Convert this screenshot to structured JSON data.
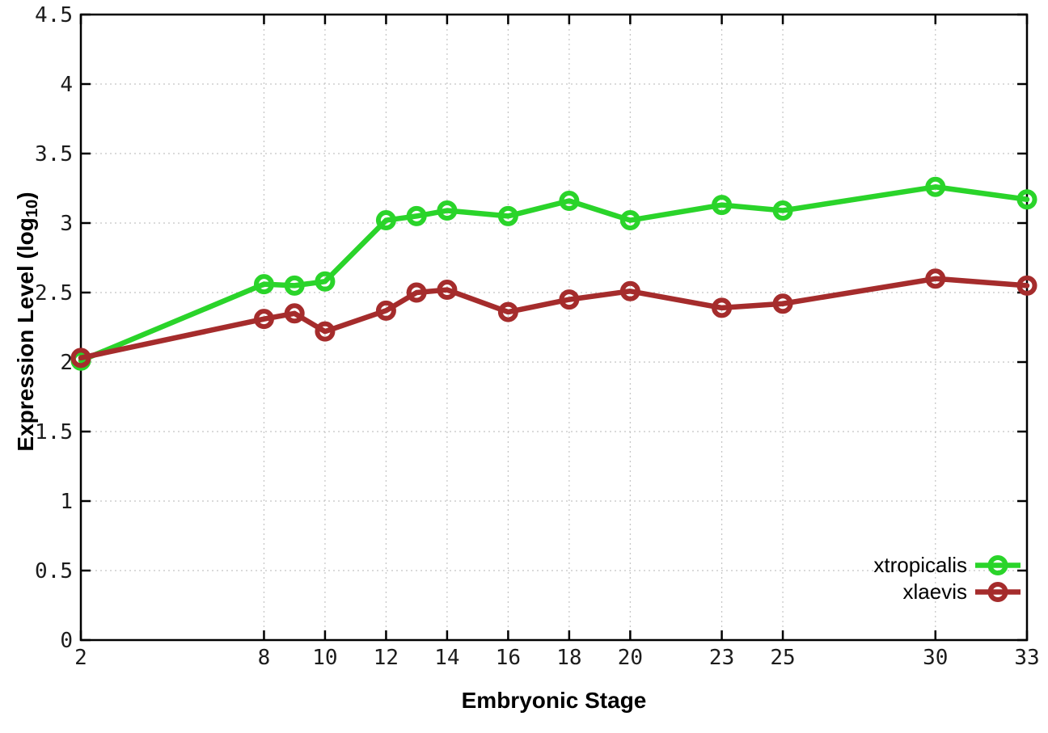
{
  "chart_data": {
    "type": "line",
    "title": "",
    "xlabel": "Embryonic Stage",
    "ylabel": "Expression Level (log10)",
    "ylabel_parts": {
      "prefix": "Expression Level (log",
      "subscript": "10",
      "suffix": ")"
    },
    "x": [
      2,
      8,
      9,
      10,
      12,
      13,
      14,
      16,
      18,
      20,
      23,
      25,
      30,
      33
    ],
    "x_tick_labels": [
      "2",
      "8",
      "10",
      "12",
      "14",
      "16",
      "18",
      "20",
      "23",
      "25",
      "30",
      "33"
    ],
    "x_tick_values": [
      2,
      8,
      10,
      12,
      14,
      16,
      18,
      20,
      23,
      25,
      30,
      33
    ],
    "y_tick_labels": [
      "0",
      "0.5",
      "1",
      "1.5",
      "2",
      "2.5",
      "3",
      "3.5",
      "4",
      "4.5"
    ],
    "y_tick_values": [
      0,
      0.5,
      1,
      1.5,
      2,
      2.5,
      3,
      3.5,
      4,
      4.5
    ],
    "xlim": [
      2,
      33
    ],
    "ylim": [
      0,
      4.5
    ],
    "grid": true,
    "grid_style": "dotted",
    "marker": "open-circle",
    "legend_position": "bottom-right",
    "series": [
      {
        "name": "xtropicalis",
        "color": "#2ad42a",
        "values": [
          2.01,
          2.56,
          2.55,
          2.58,
          3.02,
          3.05,
          3.09,
          3.05,
          3.16,
          3.02,
          3.13,
          3.09,
          3.26,
          3.17
        ]
      },
      {
        "name": "xlaevis",
        "color": "#a52c2c",
        "values": [
          2.03,
          2.31,
          2.35,
          2.22,
          2.37,
          2.5,
          2.52,
          2.36,
          2.45,
          2.51,
          2.39,
          2.42,
          2.6,
          2.55
        ]
      }
    ],
    "colors": {
      "border": "#000000",
      "grid": "#c4c4c4",
      "tick_text": "#1c1c1c",
      "background": "#ffffff"
    }
  }
}
